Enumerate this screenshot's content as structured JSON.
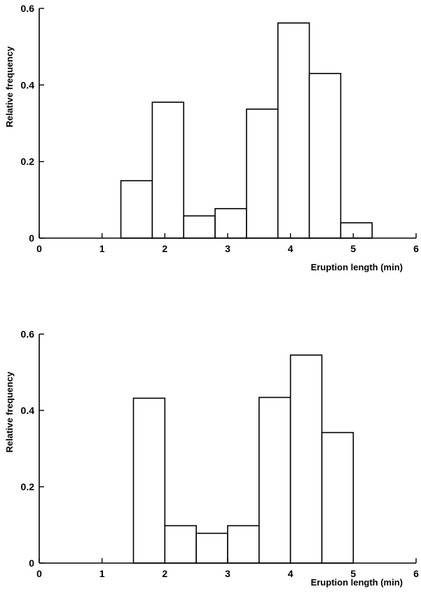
{
  "chart_data": [
    {
      "type": "bar",
      "xlabel": "Eruption length (min)",
      "ylabel": "Relative frequency",
      "xlim": [
        0,
        6
      ],
      "ylim": [
        0,
        0.6
      ],
      "x_ticks": [
        "0",
        "1",
        "2",
        "3",
        "4",
        "5",
        "6"
      ],
      "y_ticks": [
        "0",
        "0.2",
        "0.4",
        "0.6"
      ],
      "bin_width": 0.5,
      "bins": [
        {
          "start": 1.3,
          "end": 1.8,
          "value": 0.15
        },
        {
          "start": 1.8,
          "end": 2.3,
          "value": 0.355
        },
        {
          "start": 2.3,
          "end": 2.8,
          "value": 0.058
        },
        {
          "start": 2.8,
          "end": 3.3,
          "value": 0.077
        },
        {
          "start": 3.3,
          "end": 3.8,
          "value": 0.337
        },
        {
          "start": 3.8,
          "end": 4.3,
          "value": 0.562
        },
        {
          "start": 4.3,
          "end": 4.8,
          "value": 0.43
        },
        {
          "start": 4.8,
          "end": 5.3,
          "value": 0.04
        }
      ]
    },
    {
      "type": "bar",
      "xlabel": "Eruption length (min)",
      "ylabel": "Relative frequency",
      "xlim": [
        0,
        6
      ],
      "ylim": [
        0,
        0.6
      ],
      "x_ticks": [
        "0",
        "1",
        "2",
        "3",
        "4",
        "5",
        "6"
      ],
      "y_ticks": [
        "0",
        "0.2",
        "0.4",
        "0.6"
      ],
      "bin_width": 0.5,
      "bins": [
        {
          "start": 1.5,
          "end": 2.0,
          "value": 0.432
        },
        {
          "start": 2.0,
          "end": 2.5,
          "value": 0.098
        },
        {
          "start": 2.5,
          "end": 3.0,
          "value": 0.078
        },
        {
          "start": 3.0,
          "end": 3.5,
          "value": 0.098
        },
        {
          "start": 3.5,
          "end": 4.0,
          "value": 0.434
        },
        {
          "start": 4.0,
          "end": 4.5,
          "value": 0.545
        },
        {
          "start": 4.5,
          "end": 5.0,
          "value": 0.342
        }
      ]
    }
  ]
}
